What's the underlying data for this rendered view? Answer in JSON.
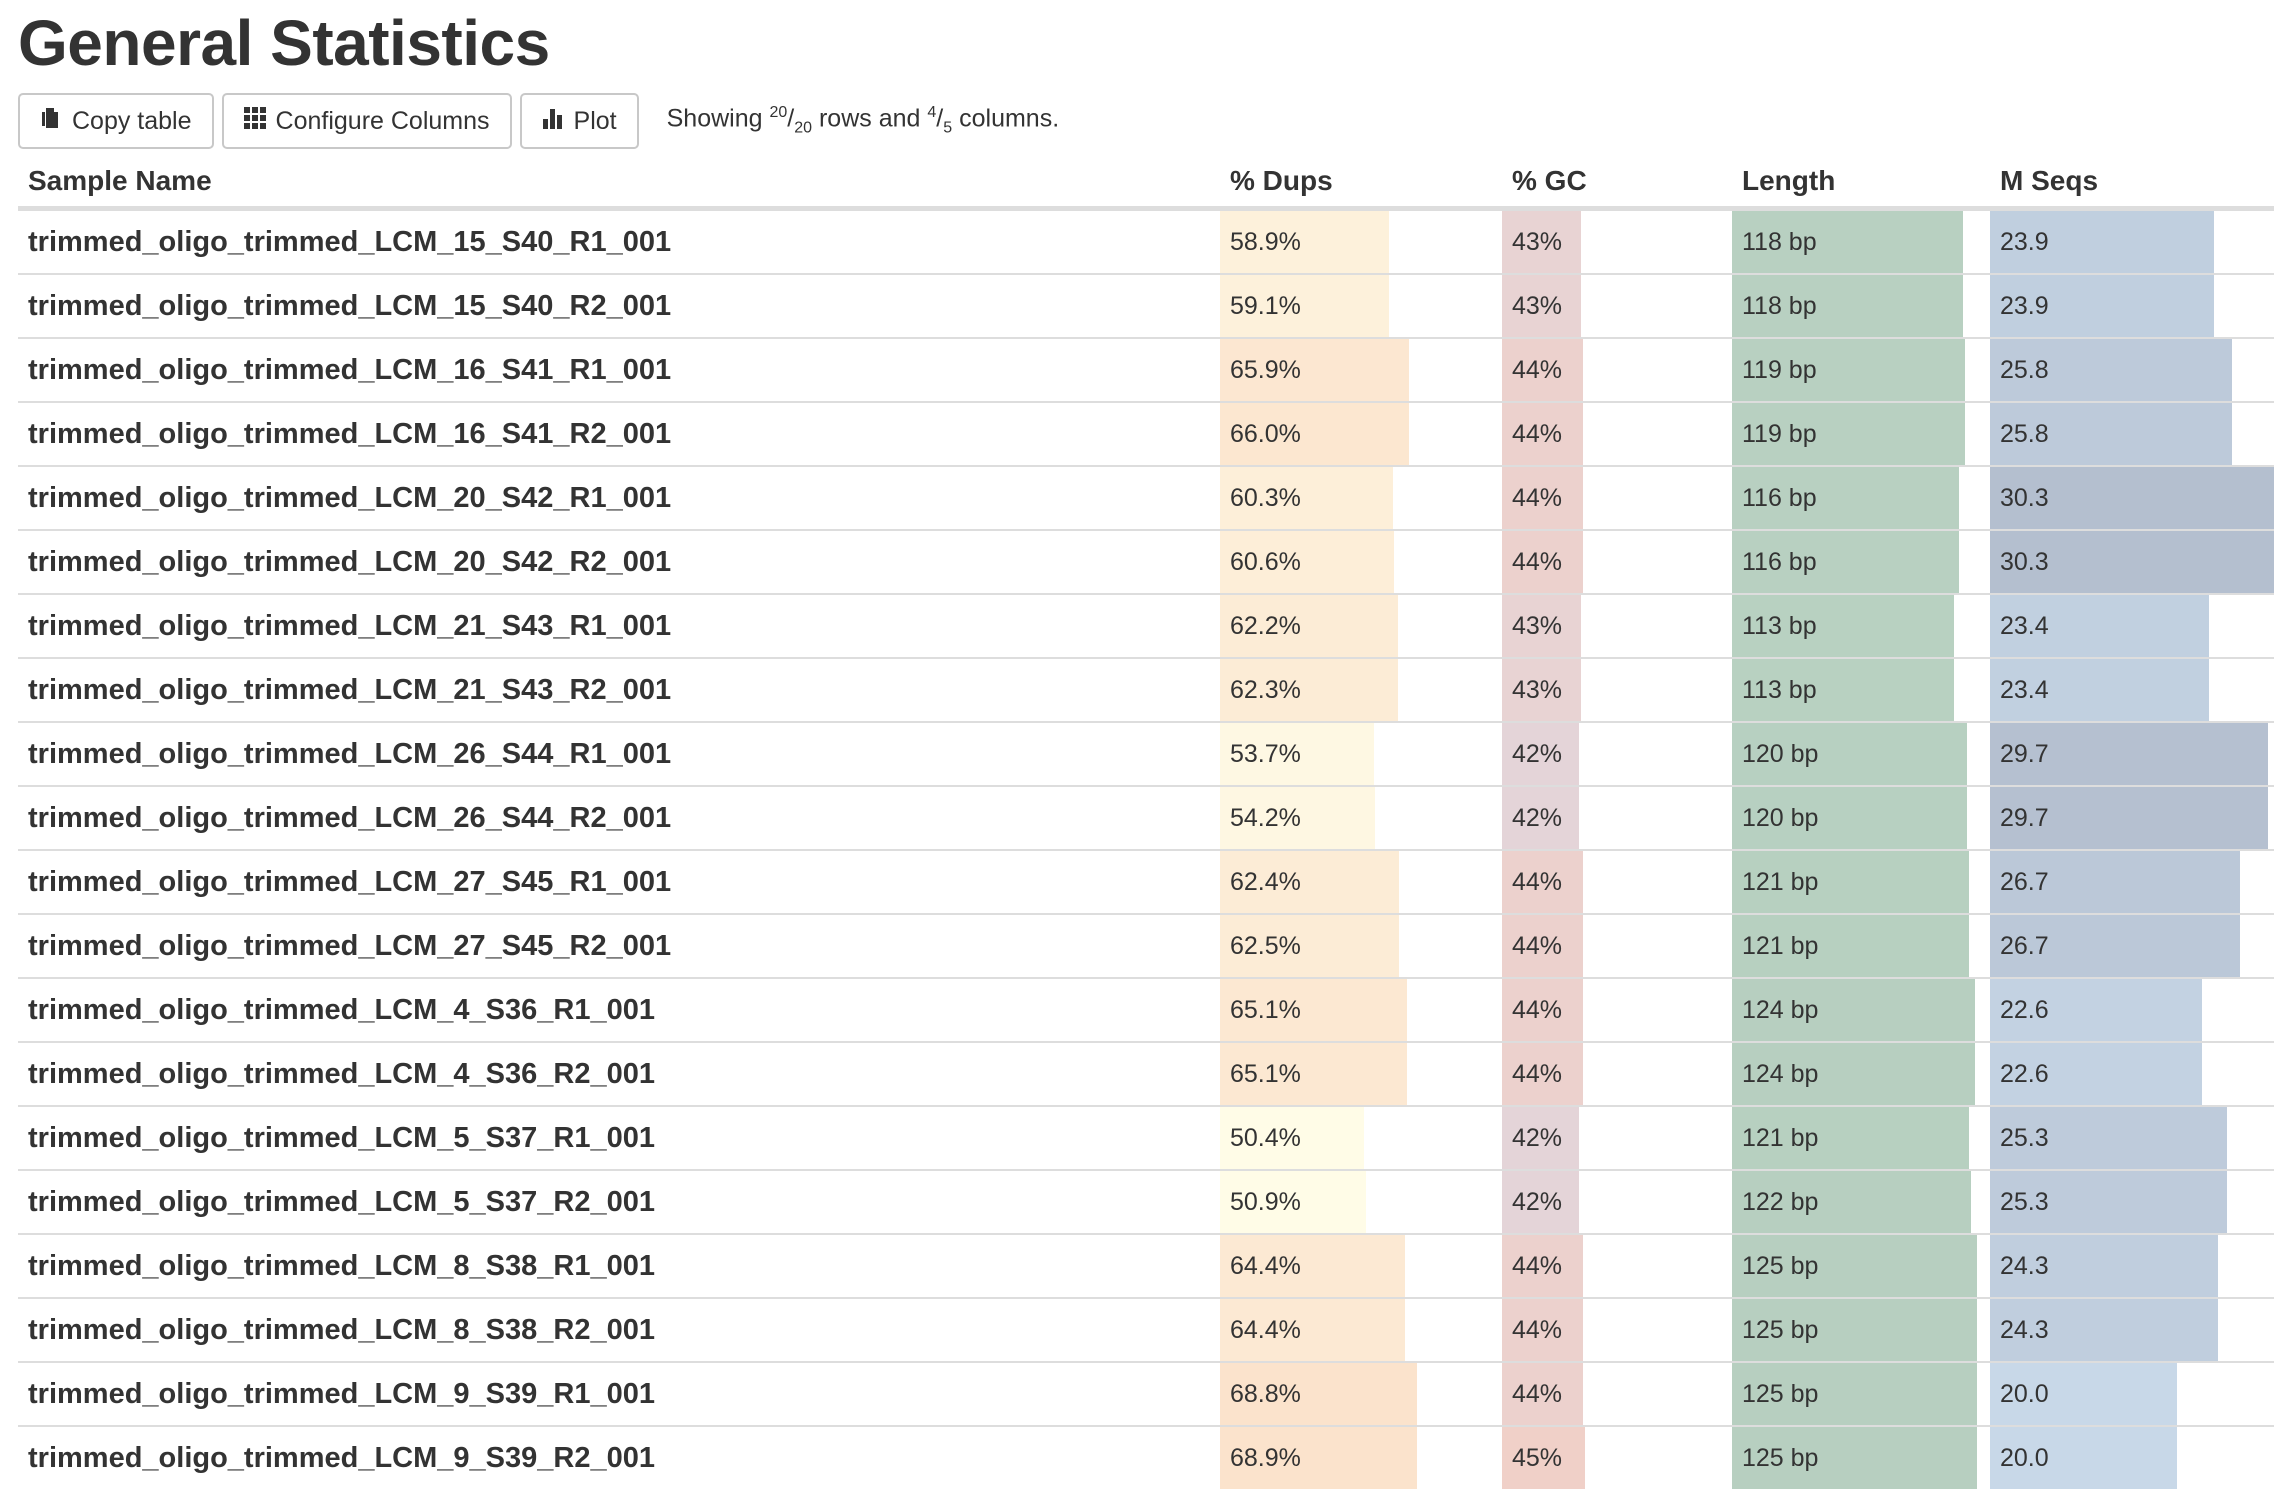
{
  "title": "General Statistics",
  "toolbar": {
    "copy_label": "Copy table",
    "configure_label": "Configure Columns",
    "plot_label": "Plot",
    "showing_prefix": "Showing",
    "rows_shown": "20",
    "rows_total": "20",
    "rows_word": "rows and",
    "cols_shown": "4",
    "cols_total": "5",
    "cols_word": "columns."
  },
  "columns": [
    "Sample Name",
    "% Dups",
    "% GC",
    "Length",
    "M Seqs"
  ],
  "colors": {
    "dups_low": "#fffde8",
    "dups_high": "#fbe3cc",
    "gc_low": "#e4d4d8",
    "gc_high": "#f0d0c8",
    "length_low": "#c3e2cf",
    "length_high": "#b7cfc0",
    "mseqs_low": "#c8d8e8",
    "mseqs_high": "#b4bfcf"
  },
  "rows": [
    {
      "name": "trimmed_oligo_trimmed_LCM_15_S40_R1_001",
      "dups": "58.9%",
      "gc": "43%",
      "length": "118 bp",
      "mseqs": "23.9",
      "dups_frac": 0.589,
      "gc_frac": 0.43,
      "len_frac": 0.944,
      "mseq_frac": 0.789
    },
    {
      "name": "trimmed_oligo_trimmed_LCM_15_S40_R2_001",
      "dups": "59.1%",
      "gc": "43%",
      "length": "118 bp",
      "mseqs": "23.9",
      "dups_frac": 0.591,
      "gc_frac": 0.43,
      "len_frac": 0.944,
      "mseq_frac": 0.789
    },
    {
      "name": "trimmed_oligo_trimmed_LCM_16_S41_R1_001",
      "dups": "65.9%",
      "gc": "44%",
      "length": "119 bp",
      "mseqs": "25.8",
      "dups_frac": 0.659,
      "gc_frac": 0.44,
      "len_frac": 0.952,
      "mseq_frac": 0.851
    },
    {
      "name": "trimmed_oligo_trimmed_LCM_16_S41_R2_001",
      "dups": "66.0%",
      "gc": "44%",
      "length": "119 bp",
      "mseqs": "25.8",
      "dups_frac": 0.66,
      "gc_frac": 0.44,
      "len_frac": 0.952,
      "mseq_frac": 0.851
    },
    {
      "name": "trimmed_oligo_trimmed_LCM_20_S42_R1_001",
      "dups": "60.3%",
      "gc": "44%",
      "length": "116 bp",
      "mseqs": "30.3",
      "dups_frac": 0.603,
      "gc_frac": 0.44,
      "len_frac": 0.928,
      "mseq_frac": 1.0
    },
    {
      "name": "trimmed_oligo_trimmed_LCM_20_S42_R2_001",
      "dups": "60.6%",
      "gc": "44%",
      "length": "116 bp",
      "mseqs": "30.3",
      "dups_frac": 0.606,
      "gc_frac": 0.44,
      "len_frac": 0.928,
      "mseq_frac": 1.0
    },
    {
      "name": "trimmed_oligo_trimmed_LCM_21_S43_R1_001",
      "dups": "62.2%",
      "gc": "43%",
      "length": "113 bp",
      "mseqs": "23.4",
      "dups_frac": 0.622,
      "gc_frac": 0.43,
      "len_frac": 0.904,
      "mseq_frac": 0.772
    },
    {
      "name": "trimmed_oligo_trimmed_LCM_21_S43_R2_001",
      "dups": "62.3%",
      "gc": "43%",
      "length": "113 bp",
      "mseqs": "23.4",
      "dups_frac": 0.623,
      "gc_frac": 0.43,
      "len_frac": 0.904,
      "mseq_frac": 0.772
    },
    {
      "name": "trimmed_oligo_trimmed_LCM_26_S44_R1_001",
      "dups": "53.7%",
      "gc": "42%",
      "length": "120 bp",
      "mseqs": "29.7",
      "dups_frac": 0.537,
      "gc_frac": 0.42,
      "len_frac": 0.96,
      "mseq_frac": 0.98
    },
    {
      "name": "trimmed_oligo_trimmed_LCM_26_S44_R2_001",
      "dups": "54.2%",
      "gc": "42%",
      "length": "120 bp",
      "mseqs": "29.7",
      "dups_frac": 0.542,
      "gc_frac": 0.42,
      "len_frac": 0.96,
      "mseq_frac": 0.98
    },
    {
      "name": "trimmed_oligo_trimmed_LCM_27_S45_R1_001",
      "dups": "62.4%",
      "gc": "44%",
      "length": "121 bp",
      "mseqs": "26.7",
      "dups_frac": 0.624,
      "gc_frac": 0.44,
      "len_frac": 0.968,
      "mseq_frac": 0.881
    },
    {
      "name": "trimmed_oligo_trimmed_LCM_27_S45_R2_001",
      "dups": "62.5%",
      "gc": "44%",
      "length": "121 bp",
      "mseqs": "26.7",
      "dups_frac": 0.625,
      "gc_frac": 0.44,
      "len_frac": 0.968,
      "mseq_frac": 0.881
    },
    {
      "name": "trimmed_oligo_trimmed_LCM_4_S36_R1_001",
      "dups": "65.1%",
      "gc": "44%",
      "length": "124 bp",
      "mseqs": "22.6",
      "dups_frac": 0.651,
      "gc_frac": 0.44,
      "len_frac": 0.992,
      "mseq_frac": 0.746
    },
    {
      "name": "trimmed_oligo_trimmed_LCM_4_S36_R2_001",
      "dups": "65.1%",
      "gc": "44%",
      "length": "124 bp",
      "mseqs": "22.6",
      "dups_frac": 0.651,
      "gc_frac": 0.44,
      "len_frac": 0.992,
      "mseq_frac": 0.746
    },
    {
      "name": "trimmed_oligo_trimmed_LCM_5_S37_R1_001",
      "dups": "50.4%",
      "gc": "42%",
      "length": "121 bp",
      "mseqs": "25.3",
      "dups_frac": 0.504,
      "gc_frac": 0.42,
      "len_frac": 0.968,
      "mseq_frac": 0.835
    },
    {
      "name": "trimmed_oligo_trimmed_LCM_5_S37_R2_001",
      "dups": "50.9%",
      "gc": "42%",
      "length": "122 bp",
      "mseqs": "25.3",
      "dups_frac": 0.509,
      "gc_frac": 0.42,
      "len_frac": 0.976,
      "mseq_frac": 0.835
    },
    {
      "name": "trimmed_oligo_trimmed_LCM_8_S38_R1_001",
      "dups": "64.4%",
      "gc": "44%",
      "length": "125 bp",
      "mseqs": "24.3",
      "dups_frac": 0.644,
      "gc_frac": 0.44,
      "len_frac": 1.0,
      "mseq_frac": 0.802
    },
    {
      "name": "trimmed_oligo_trimmed_LCM_8_S38_R2_001",
      "dups": "64.4%",
      "gc": "44%",
      "length": "125 bp",
      "mseqs": "24.3",
      "dups_frac": 0.644,
      "gc_frac": 0.44,
      "len_frac": 1.0,
      "mseq_frac": 0.802
    },
    {
      "name": "trimmed_oligo_trimmed_LCM_9_S39_R1_001",
      "dups": "68.8%",
      "gc": "44%",
      "length": "125 bp",
      "mseqs": "20.0",
      "dups_frac": 0.688,
      "gc_frac": 0.44,
      "len_frac": 1.0,
      "mseq_frac": 0.66
    },
    {
      "name": "trimmed_oligo_trimmed_LCM_9_S39_R2_001",
      "dups": "68.9%",
      "gc": "45%",
      "length": "125 bp",
      "mseqs": "20.0",
      "dups_frac": 0.689,
      "gc_frac": 0.45,
      "len_frac": 1.0,
      "mseq_frac": 0.66
    }
  ]
}
